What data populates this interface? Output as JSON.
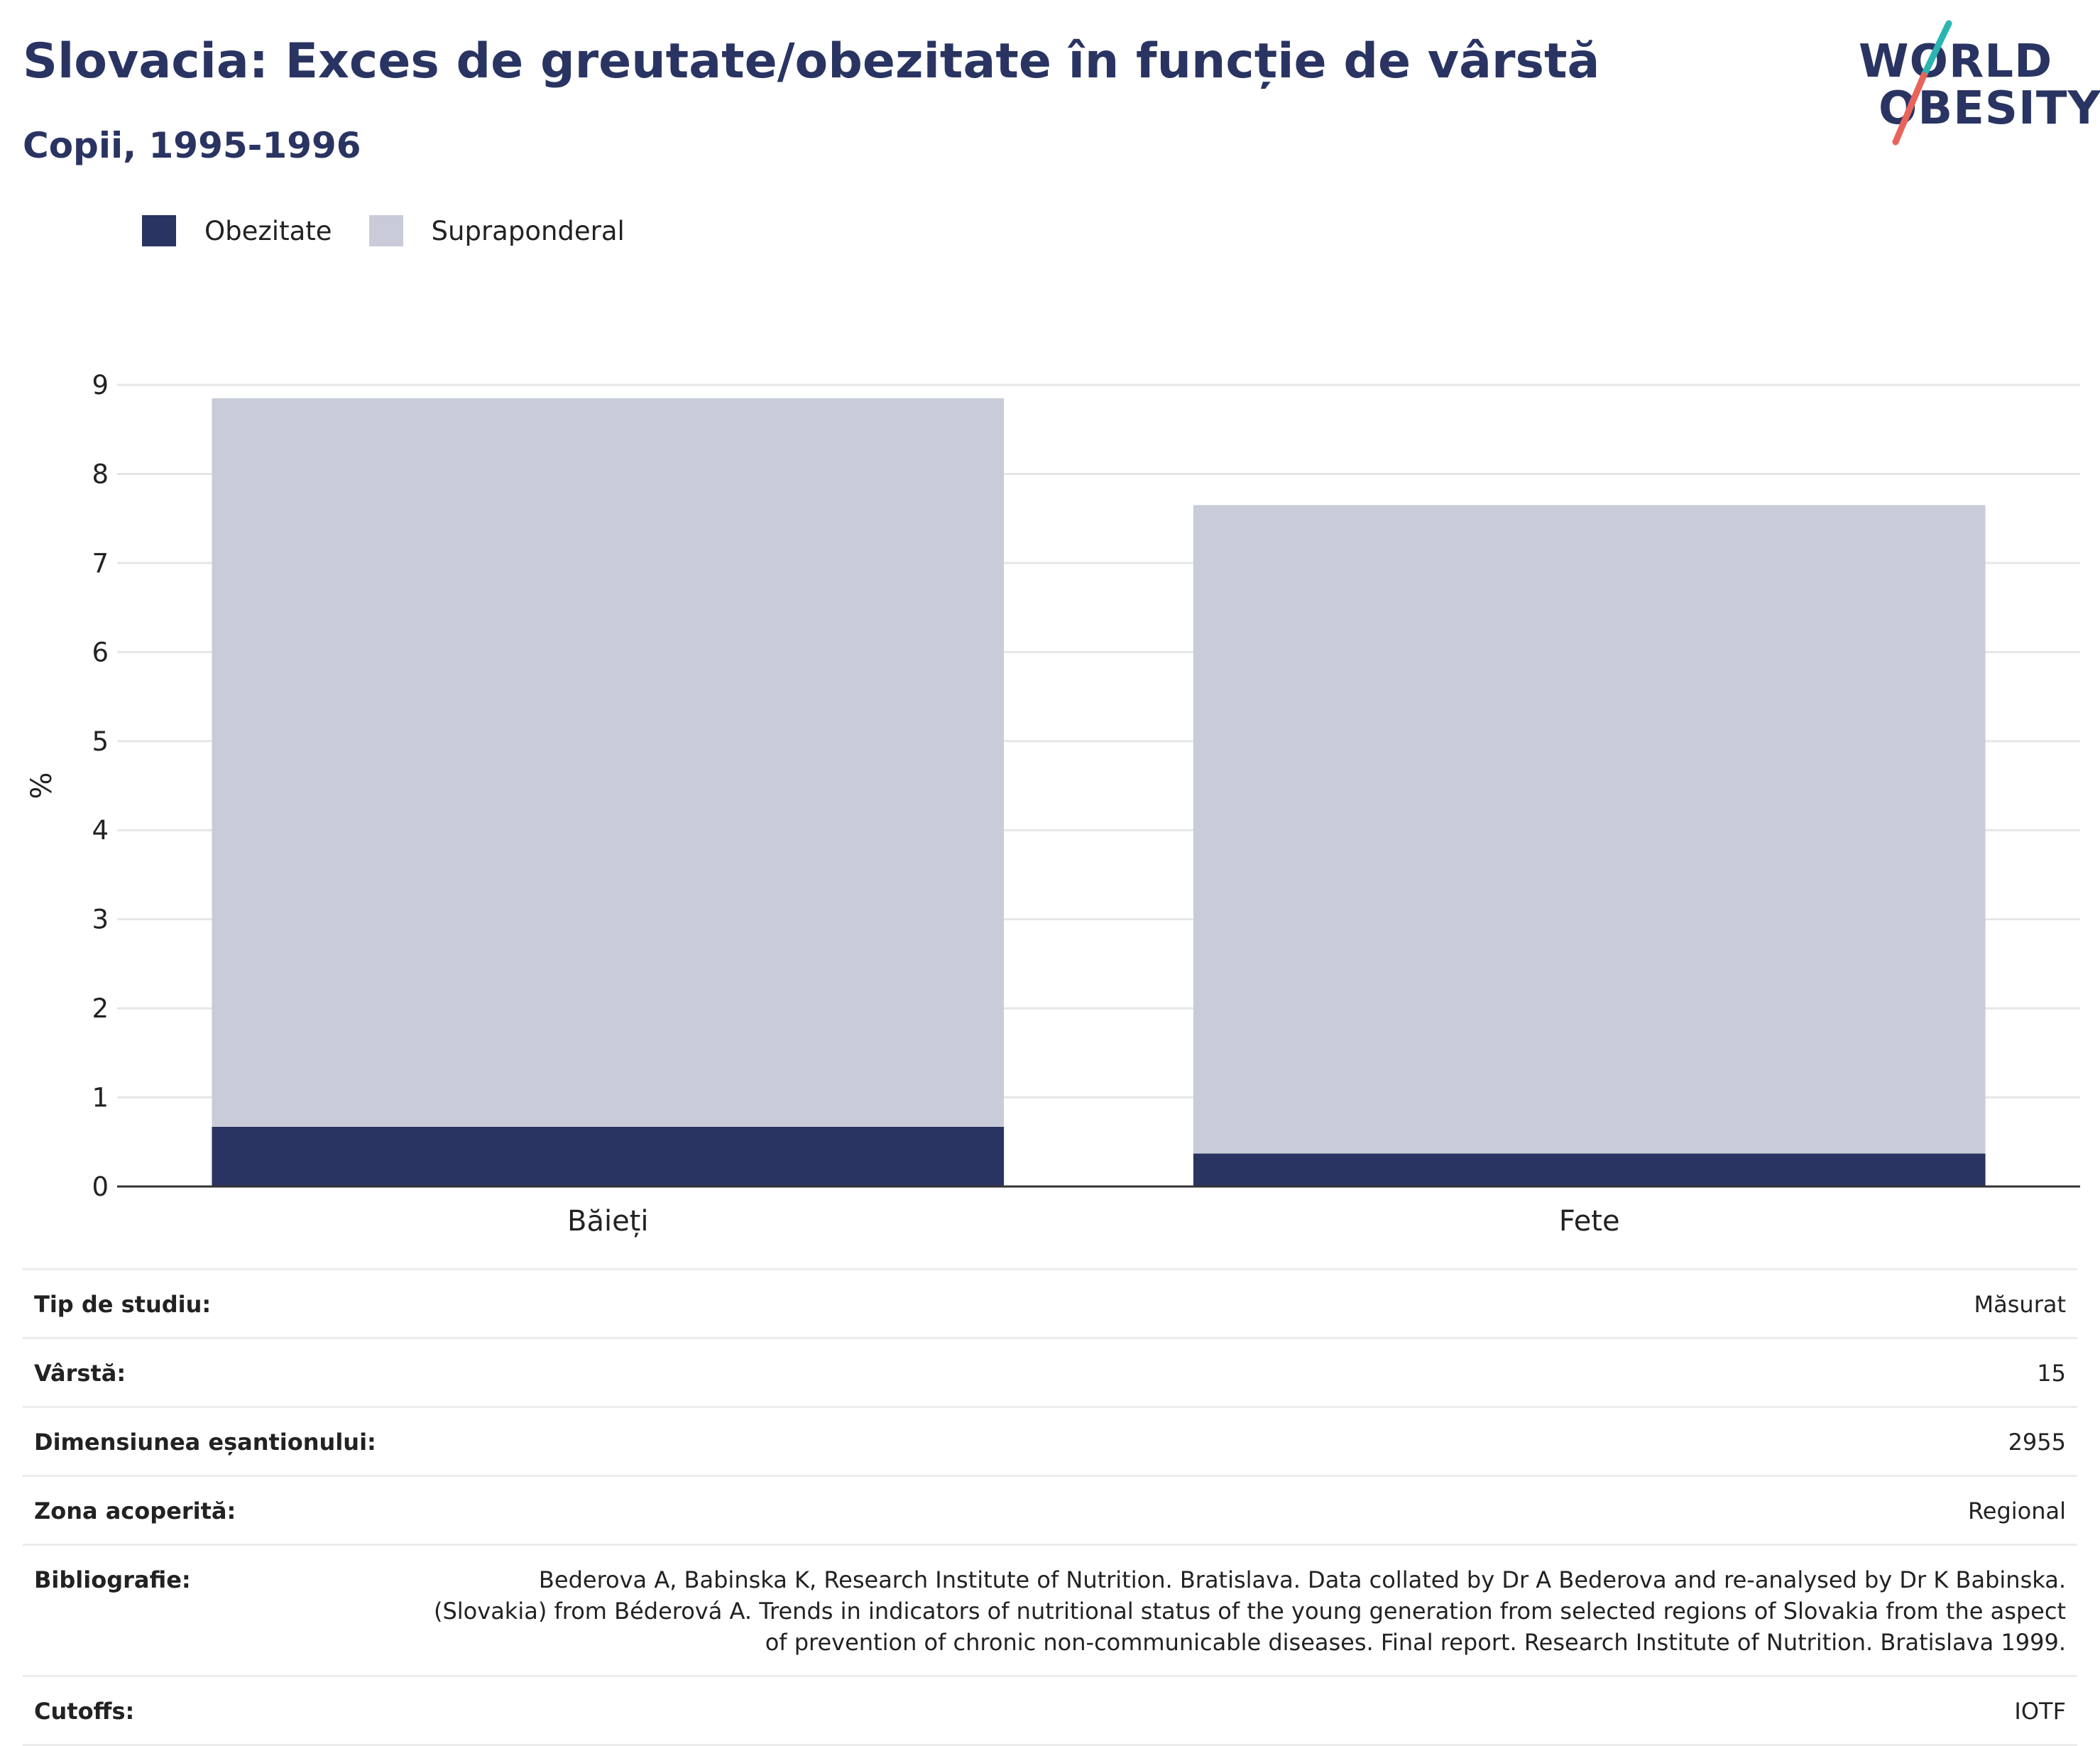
{
  "header": {
    "title": "Slovacia: Exces de greutate/obezitate în funcție de vârstă",
    "subtitle": "Copii, 1995-1996"
  },
  "logo": {
    "line1": "WORLD",
    "line2": "OBESITY",
    "colors": {
      "text": "#2a3462",
      "teal": "#2bb5b0",
      "coral": "#e8645a"
    }
  },
  "legend": {
    "items": [
      {
        "label": "Obezitate",
        "color": "#2a3462"
      },
      {
        "label": "Supraponderal",
        "color": "#c9ccd8"
      }
    ]
  },
  "chart_data": {
    "type": "bar",
    "stacked": true,
    "categories": [
      "Băieți",
      "Fete"
    ],
    "series": [
      {
        "name": "Obezitate",
        "color": "#2a3462",
        "values": [
          0.67,
          0.37
        ]
      },
      {
        "name": "Supraponderal",
        "color": "#c9ccd8",
        "values": [
          8.18,
          7.28
        ]
      }
    ],
    "totals": [
      8.85,
      7.65
    ],
    "ylabel": "%",
    "ylim": [
      0,
      9
    ],
    "yticks": [
      "0",
      "1",
      "2",
      "3",
      "4",
      "5",
      "6",
      "7",
      "8",
      "9"
    ],
    "grid": true,
    "legend_position": "top-left"
  },
  "info": {
    "rows": [
      {
        "label": "Tip de studiu:",
        "value": "Măsurat"
      },
      {
        "label": "Vârstă:",
        "value": "15"
      },
      {
        "label": "Dimensiunea eșantionului:",
        "value": "2955"
      },
      {
        "label": "Zona acoperită:",
        "value": "Regional"
      },
      {
        "label": "Bibliografie:",
        "value": "Bederova A, Babinska K, Research Institute of Nutrition. Bratislava. Data collated by Dr A Bederova and re-analysed by Dr K Babinska. (Slovakia) from Béderová A. Trends in indicators of nutritional status of the young generation from selected regions of Slovakia from the aspect of prevention of chronic non-communicable diseases. Final report. Research Institute of Nutrition. Bratislava 1999."
      },
      {
        "label": "Cutoffs:",
        "value": "IOTF"
      }
    ]
  }
}
